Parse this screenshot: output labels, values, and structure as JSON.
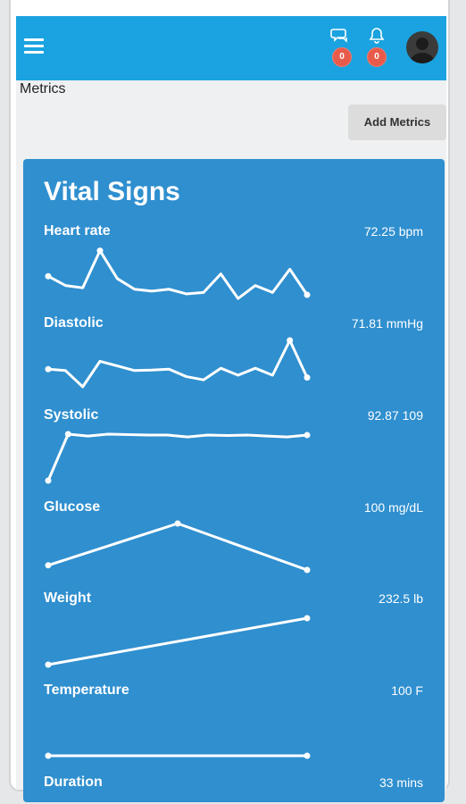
{
  "header": {
    "chat_badge": "0",
    "notification_badge": "0",
    "colors": {
      "bar": "#1aa3e0",
      "badge": "#e85b4b"
    }
  },
  "page": {
    "title": "Metrics",
    "add_button_label": "Add Metrics"
  },
  "card": {
    "title": "Vital Signs",
    "color": "#2f8fcf",
    "metrics": [
      {
        "name": "Heart rate",
        "value": "72.25 bpm"
      },
      {
        "name": "Diastolic",
        "value": "71.81 mmHg"
      },
      {
        "name": "Systolic",
        "value": "92.87 109"
      },
      {
        "name": "Glucose",
        "value": "100 mg/dL"
      },
      {
        "name": "Weight",
        "value": "232.5 lb"
      },
      {
        "name": "Temperature",
        "value": "100 F"
      },
      {
        "name": "Duration",
        "value": "33 mins"
      }
    ]
  },
  "chart_data": [
    {
      "type": "line",
      "series": [
        {
          "name": "Heart rate",
          "values": [
            0.4,
            0.2,
            0.15,
            0.95,
            0.35,
            0.12,
            0.08,
            0.12,
            0.02,
            0.05,
            0.45,
            -0.08,
            0.2,
            0.05,
            0.55,
            0.0
          ]
        }
      ]
    },
    {
      "type": "line",
      "series": [
        {
          "name": "Diastolic",
          "values": [
            0.38,
            0.35,
            0.0,
            0.55,
            0.45,
            0.35,
            0.36,
            0.38,
            0.22,
            0.15,
            0.4,
            0.25,
            0.4,
            0.25,
            1.0,
            0.2
          ]
        }
      ]
    },
    {
      "type": "line",
      "series": [
        {
          "name": "Systolic",
          "values": [
            0.0,
            1.0,
            0.96,
            1.0,
            0.99,
            0.98,
            0.98,
            0.94,
            0.98,
            0.97,
            0.98,
            0.96,
            0.94,
            0.98
          ]
        }
      ]
    },
    {
      "type": "line",
      "series": [
        {
          "name": "Glucose",
          "values": [
            0.1,
            1.0,
            0.0
          ]
        }
      ]
    },
    {
      "type": "line",
      "series": [
        {
          "name": "Weight",
          "values": [
            0.0,
            1.0
          ]
        }
      ]
    },
    {
      "type": "line",
      "series": [
        {
          "name": "Temperature",
          "values": [
            0.5,
            0.5
          ]
        }
      ]
    }
  ]
}
